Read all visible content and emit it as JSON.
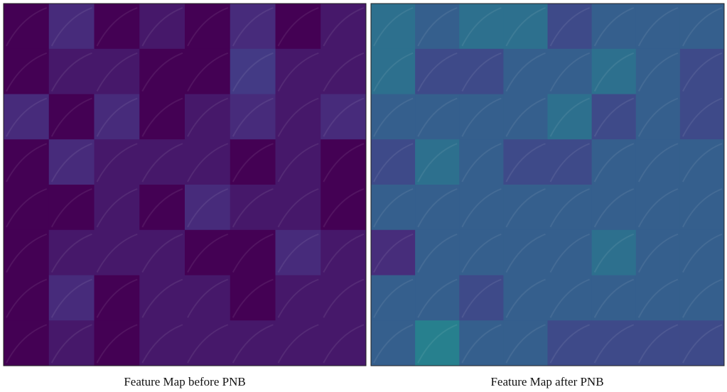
{
  "panels": [
    {
      "caption": "Feature Map before PNB"
    },
    {
      "caption": "Feature Map after PNB"
    }
  ]
}
